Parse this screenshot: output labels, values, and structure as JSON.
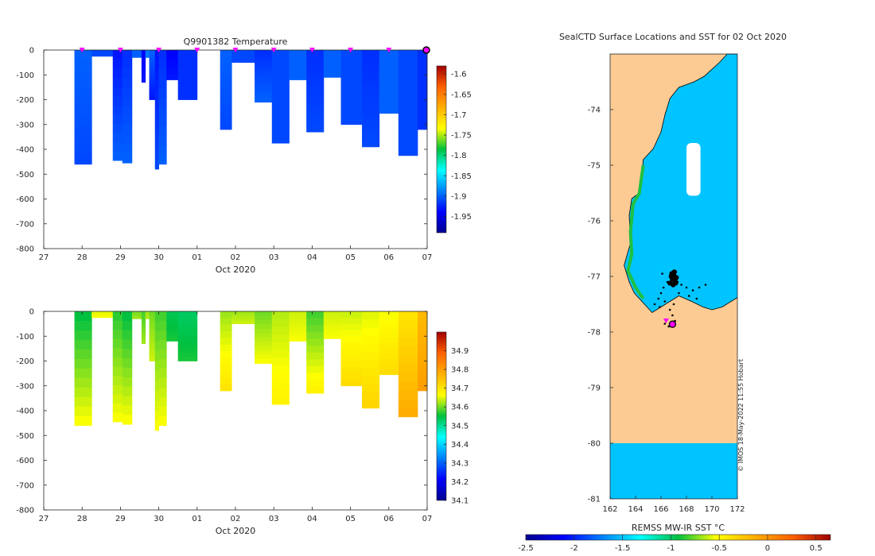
{
  "chart_data": [
    {
      "id": "temperature",
      "type": "heatmap",
      "title": "Q9901382  Temperature",
      "xlabel": "Oct 2020",
      "ylabel": "",
      "x_tick_labels": [
        "27",
        "28",
        "29",
        "30",
        "01",
        "02",
        "03",
        "04",
        "05",
        "06",
        "07"
      ],
      "x_range_days": [
        0,
        10
      ],
      "ylim": [
        -800,
        0
      ],
      "y_ticks": [
        0,
        -100,
        -200,
        -300,
        -400,
        -500,
        -600,
        -700,
        -800
      ],
      "colorbar": {
        "range": [
          -1.99,
          -1.58
        ],
        "ticks": [
          -1.6,
          -1.65,
          -1.7,
          -1.75,
          -1.8,
          -1.85,
          -1.9,
          -1.95
        ],
        "tick_labels": [
          "-1.6",
          "-1.65",
          "-1.7",
          "-1.75",
          "-1.8",
          "-1.85",
          "-1.9",
          "-1.95"
        ]
      },
      "surface_markers_day": [
        1.0,
        2.0,
        3.0,
        4.0,
        5.0,
        6.0,
        7.0,
        8.0,
        9.0
      ],
      "last_position_marker_day": 10.0,
      "profiles": [
        {
          "t0": 0.8,
          "t1": 1.25,
          "depth": 460,
          "top": -1.9,
          "bottom": -1.91
        },
        {
          "t0": 1.25,
          "t1": 1.8,
          "depth": 25,
          "top": -1.91,
          "bottom": -1.91
        },
        {
          "t0": 1.8,
          "t1": 2.05,
          "depth": 445,
          "top": -1.93,
          "bottom": -1.9
        },
        {
          "t0": 2.05,
          "t1": 2.3,
          "depth": 455,
          "top": -1.92,
          "bottom": -1.9
        },
        {
          "t0": 2.3,
          "t1": 2.55,
          "depth": 30,
          "top": -1.9,
          "bottom": -1.9
        },
        {
          "t0": 2.55,
          "t1": 2.65,
          "depth": 130,
          "top": -1.94,
          "bottom": -1.93
        },
        {
          "t0": 2.65,
          "t1": 2.75,
          "depth": 30,
          "top": -1.89,
          "bottom": -1.89
        },
        {
          "t0": 2.75,
          "t1": 2.9,
          "depth": 200,
          "top": -1.9,
          "bottom": -1.93
        },
        {
          "t0": 2.9,
          "t1": 3.0,
          "depth": 480,
          "top": -1.93,
          "bottom": -1.91
        },
        {
          "t0": 3.0,
          "t1": 3.2,
          "depth": 460,
          "top": -1.92,
          "bottom": -1.9
        },
        {
          "t0": 3.2,
          "t1": 3.5,
          "depth": 120,
          "top": -1.94,
          "bottom": -1.93
        },
        {
          "t0": 3.5,
          "t1": 4.0,
          "depth": 200,
          "top": -1.92,
          "bottom": -1.92
        },
        {
          "t0": 4.6,
          "t1": 4.9,
          "depth": 320,
          "top": -1.9,
          "bottom": -1.91
        },
        {
          "t0": 4.9,
          "t1": 5.5,
          "depth": 50,
          "top": -1.91,
          "bottom": -1.91
        },
        {
          "t0": 5.5,
          "t1": 5.95,
          "depth": 210,
          "top": -1.92,
          "bottom": -1.9
        },
        {
          "t0": 5.95,
          "t1": 6.4,
          "depth": 375,
          "top": -1.91,
          "bottom": -1.91
        },
        {
          "t0": 6.4,
          "t1": 6.85,
          "depth": 120,
          "top": -1.9,
          "bottom": -1.9
        },
        {
          "t0": 6.85,
          "t1": 7.3,
          "depth": 330,
          "top": -1.92,
          "bottom": -1.91
        },
        {
          "t0": 7.3,
          "t1": 7.75,
          "depth": 110,
          "top": -1.9,
          "bottom": -1.9
        },
        {
          "t0": 7.75,
          "t1": 8.3,
          "depth": 300,
          "top": -1.91,
          "bottom": -1.91
        },
        {
          "t0": 8.3,
          "t1": 8.75,
          "depth": 390,
          "top": -1.92,
          "bottom": -1.91
        },
        {
          "t0": 8.75,
          "t1": 9.25,
          "depth": 255,
          "top": -1.9,
          "bottom": -1.9
        },
        {
          "t0": 9.25,
          "t1": 9.75,
          "depth": 425,
          "top": -1.91,
          "bottom": -1.91
        },
        {
          "t0": 9.75,
          "t1": 10.0,
          "depth": 320,
          "top": -1.92,
          "bottom": -1.92
        }
      ]
    },
    {
      "id": "salinity",
      "type": "heatmap",
      "title": "",
      "xlabel": "Oct 2020",
      "ylabel": "",
      "x_tick_labels": [
        "27",
        "28",
        "29",
        "30",
        "01",
        "02",
        "03",
        "04",
        "05",
        "06",
        "07"
      ],
      "x_range_days": [
        0,
        10
      ],
      "ylim": [
        -800,
        0
      ],
      "y_ticks": [
        0,
        -100,
        -200,
        -300,
        -400,
        -500,
        -600,
        -700,
        -800
      ],
      "colorbar": {
        "range": [
          34.1,
          35.0
        ],
        "ticks": [
          34.1,
          34.2,
          34.3,
          34.4,
          34.5,
          34.6,
          34.7,
          34.8,
          34.9
        ],
        "tick_labels": [
          "34.1",
          "34.2",
          "34.3",
          "34.4",
          "34.5",
          "34.6",
          "34.7",
          "34.8",
          "34.9"
        ]
      },
      "profiles": [
        {
          "t0": 0.8,
          "t1": 1.25,
          "depth": 460,
          "top": 34.55,
          "bottom": 34.66
        },
        {
          "t0": 1.25,
          "t1": 1.8,
          "depth": 25,
          "top": 34.65,
          "bottom": 34.66
        },
        {
          "t0": 1.8,
          "t1": 2.05,
          "depth": 445,
          "top": 34.57,
          "bottom": 34.66
        },
        {
          "t0": 2.05,
          "t1": 2.3,
          "depth": 455,
          "top": 34.55,
          "bottom": 34.66
        },
        {
          "t0": 2.3,
          "t1": 2.55,
          "depth": 30,
          "top": 34.6,
          "bottom": 34.62
        },
        {
          "t0": 2.55,
          "t1": 2.65,
          "depth": 130,
          "top": 34.58,
          "bottom": 34.62
        },
        {
          "t0": 2.65,
          "t1": 2.75,
          "depth": 30,
          "top": 34.62,
          "bottom": 34.63
        },
        {
          "t0": 2.75,
          "t1": 2.9,
          "depth": 200,
          "top": 34.6,
          "bottom": 34.64
        },
        {
          "t0": 2.9,
          "t1": 3.0,
          "depth": 480,
          "top": 34.58,
          "bottom": 34.66
        },
        {
          "t0": 3.0,
          "t1": 3.2,
          "depth": 460,
          "top": 34.58,
          "bottom": 34.66
        },
        {
          "t0": 3.2,
          "t1": 3.5,
          "depth": 120,
          "top": 34.54,
          "bottom": 34.56
        },
        {
          "t0": 3.5,
          "t1": 4.0,
          "depth": 200,
          "top": 34.53,
          "bottom": 34.56
        },
        {
          "t0": 4.6,
          "t1": 4.9,
          "depth": 320,
          "top": 34.62,
          "bottom": 34.7
        },
        {
          "t0": 4.9,
          "t1": 5.5,
          "depth": 50,
          "top": 34.62,
          "bottom": 34.64
        },
        {
          "t0": 5.5,
          "t1": 5.95,
          "depth": 210,
          "top": 34.6,
          "bottom": 34.66
        },
        {
          "t0": 5.95,
          "t1": 6.4,
          "depth": 375,
          "top": 34.63,
          "bottom": 34.68
        },
        {
          "t0": 6.4,
          "t1": 6.85,
          "depth": 120,
          "top": 34.64,
          "bottom": 34.66
        },
        {
          "t0": 6.85,
          "t1": 7.3,
          "depth": 330,
          "top": 34.58,
          "bottom": 34.68
        },
        {
          "t0": 7.3,
          "t1": 7.75,
          "depth": 110,
          "top": 34.64,
          "bottom": 34.66
        },
        {
          "t0": 7.75,
          "t1": 8.3,
          "depth": 300,
          "top": 34.64,
          "bottom": 34.71
        },
        {
          "t0": 8.3,
          "t1": 8.75,
          "depth": 390,
          "top": 34.65,
          "bottom": 34.72
        },
        {
          "t0": 8.75,
          "t1": 9.25,
          "depth": 255,
          "top": 34.66,
          "bottom": 34.71
        },
        {
          "t0": 9.25,
          "t1": 9.75,
          "depth": 425,
          "top": 34.7,
          "bottom": 34.78
        },
        {
          "t0": 9.75,
          "t1": 10.0,
          "depth": 320,
          "top": 34.76,
          "bottom": 34.8
        }
      ]
    },
    {
      "id": "sst_map",
      "type": "heatmap",
      "title": "SealCTD Surface Locations and SST for 02 Oct 2020",
      "xlabel": "",
      "ylabel": "",
      "lon_range": [
        162,
        172
      ],
      "lat_range": [
        -81,
        -73
      ],
      "x_ticks": [
        162,
        164,
        166,
        168,
        170,
        172
      ],
      "x_tick_labels": [
        "162",
        "164",
        "166",
        "168",
        "170",
        "172"
      ],
      "y_ticks": [
        -74,
        -75,
        -76,
        -77,
        -78,
        -79,
        -80,
        -81
      ],
      "y_tick_labels": [
        "-74",
        "-75",
        "-76",
        "-77",
        "-78",
        "-79",
        "-80",
        "-81"
      ],
      "ocean_sst_c": -1.5,
      "land_label_free_color": "#fccb93",
      "ice_shelf_boundary_lat": -80,
      "track_points": [
        [
          166.8,
          -77.0
        ],
        [
          167.0,
          -77.05
        ],
        [
          166.5,
          -77.1
        ],
        [
          167.3,
          -77.1
        ],
        [
          166.2,
          -77.2
        ],
        [
          167.6,
          -77.15
        ],
        [
          168.0,
          -77.2
        ],
        [
          168.5,
          -77.25
        ],
        [
          169.0,
          -77.2
        ],
        [
          169.5,
          -77.15
        ],
        [
          166.0,
          -77.3
        ],
        [
          165.8,
          -77.4
        ],
        [
          165.5,
          -77.5
        ],
        [
          165.9,
          -77.55
        ],
        [
          166.3,
          -77.45
        ],
        [
          166.7,
          -77.6
        ],
        [
          166.9,
          -77.7
        ],
        [
          167.1,
          -77.8
        ],
        [
          166.6,
          -77.9
        ],
        [
          166.3,
          -77.85
        ],
        [
          167.0,
          -77.5
        ],
        [
          167.4,
          -77.3
        ],
        [
          168.2,
          -77.35
        ],
        [
          168.8,
          -77.4
        ],
        [
          166.1,
          -76.95
        ]
      ],
      "cluster_points": [
        [
          166.8,
          -77.0
        ],
        [
          166.9,
          -77.05
        ],
        [
          167.0,
          -76.98
        ],
        [
          167.1,
          -77.08
        ],
        [
          166.7,
          -77.12
        ],
        [
          167.2,
          -77.02
        ],
        [
          166.95,
          -77.15
        ],
        [
          167.05,
          -76.92
        ],
        [
          166.85,
          -76.95
        ],
        [
          167.15,
          -77.12
        ]
      ],
      "surface_markers": [
        [
          166.4,
          -77.8
        ]
      ],
      "last_position": [
        166.9,
        -77.86
      ],
      "sea_ice_gap": {
        "lon": [
          168.0,
          169.1
        ],
        "lat": [
          -75.55,
          -74.6
        ]
      },
      "colorbar": {
        "label": "REMSS MW-IR SST °C",
        "range": [
          -2.5,
          0.65
        ],
        "ticks": [
          -2.5,
          -2,
          -1.5,
          -1,
          -0.5,
          0,
          0.5
        ],
        "tick_labels": [
          "-2.5",
          "-2",
          "-1.5",
          "-1",
          "-0.5",
          "0",
          "0.5"
        ]
      },
      "credit": "© IMOS 18-May-2022 11:55 Hobart"
    }
  ],
  "colors": {
    "land": "#fccb93",
    "ocean": "#00a0f0",
    "coast_green": "#20c040",
    "sea_ice": "#ffffff",
    "marker_magenta": "#ff00ff",
    "track": "#000000"
  }
}
